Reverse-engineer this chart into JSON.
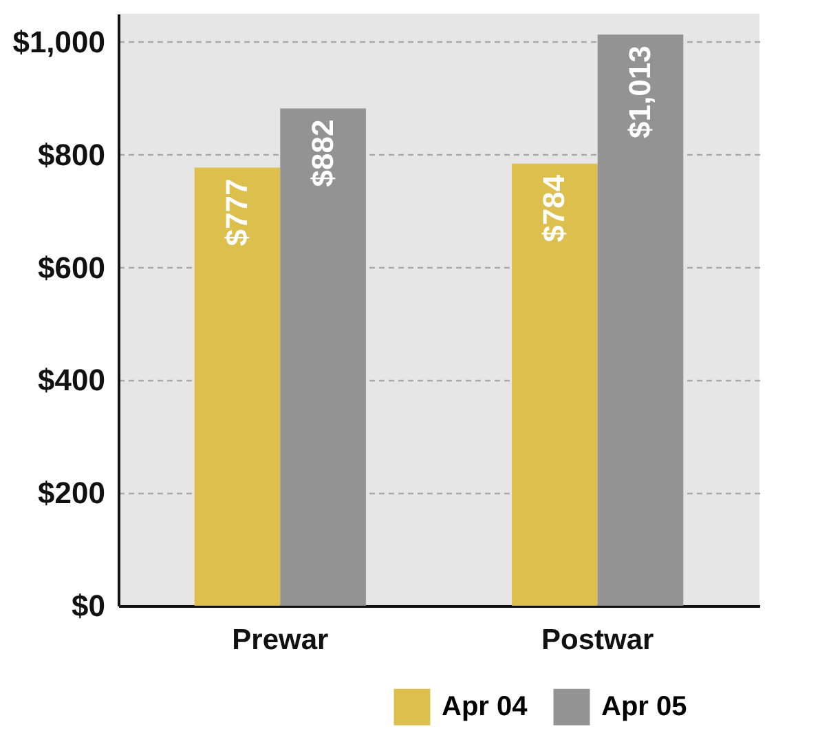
{
  "chart_data": {
    "type": "bar",
    "categories": [
      "Prewar",
      "Postwar"
    ],
    "series": [
      {
        "name": "Apr 04",
        "color": "#dcbf4c",
        "values": [
          777,
          784
        ],
        "value_labels": [
          "$777",
          "$784"
        ]
      },
      {
        "name": "Apr 05",
        "color": "#939393",
        "values": [
          882,
          1013
        ],
        "value_labels": [
          "$882",
          "$1,013"
        ]
      }
    ],
    "ylim": [
      0,
      1050
    ],
    "yticks": [
      {
        "value": 0,
        "label": "$0"
      },
      {
        "value": 200,
        "label": "$200"
      },
      {
        "value": 400,
        "label": "$400"
      },
      {
        "value": 600,
        "label": "$600"
      },
      {
        "value": 800,
        "label": "$800"
      },
      {
        "value": 1000,
        "label": "$1,000"
      }
    ],
    "grid": "y",
    "legend": "bottom right"
  }
}
